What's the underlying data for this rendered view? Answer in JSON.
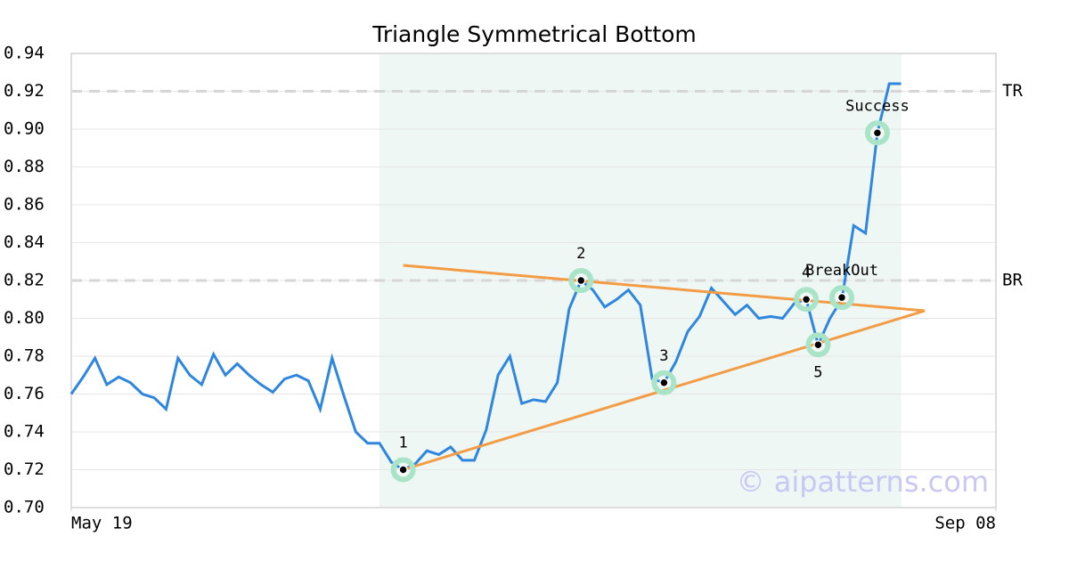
{
  "chart_data": {
    "type": "line",
    "title": "Triangle Symmetrical Bottom",
    "x": [
      0,
      1,
      2,
      3,
      4,
      5,
      6,
      7,
      8,
      9,
      10,
      11,
      12,
      13,
      14,
      15,
      16,
      17,
      18,
      19,
      20,
      21,
      22,
      23,
      24,
      25,
      26,
      27,
      28,
      29,
      30,
      31,
      32,
      33,
      34,
      35,
      36,
      37,
      38,
      39,
      40,
      41,
      42,
      43,
      44,
      45,
      46,
      47,
      48,
      49,
      50,
      51,
      52,
      53,
      54,
      55,
      56,
      57,
      58,
      59,
      60,
      61,
      62,
      63,
      64,
      65,
      66,
      67,
      68,
      69,
      70
    ],
    "series": [
      {
        "color": "#2e86de",
        "values": [
          0.76,
          0.769,
          0.779,
          0.765,
          0.769,
          0.766,
          0.76,
          0.758,
          0.752,
          0.779,
          0.77,
          0.765,
          0.781,
          0.77,
          0.776,
          0.77,
          0.765,
          0.761,
          0.768,
          0.77,
          0.767,
          0.752,
          0.779,
          0.759,
          0.74,
          0.734,
          0.734,
          0.724,
          0.72,
          0.723,
          0.73,
          0.728,
          0.732,
          0.725,
          0.725,
          0.741,
          0.77,
          0.78,
          0.755,
          0.757,
          0.756,
          0.766,
          0.805,
          0.82,
          0.815,
          0.806,
          0.81,
          0.815,
          0.807,
          0.768,
          0.766,
          0.777,
          0.793,
          0.801,
          0.816,
          0.809,
          0.802,
          0.807,
          0.8,
          0.801,
          0.8,
          0.808,
          0.81,
          0.786,
          0.8,
          0.81,
          0.849,
          0.845,
          0.898,
          0.924,
          0.924
        ]
      }
    ],
    "xlim": [
      0,
      78
    ],
    "xticks": [
      {
        "value": 0,
        "label": "May 19"
      },
      {
        "value": 78,
        "label": "Sep 08"
      }
    ],
    "ylim": [
      0.7,
      0.94
    ],
    "yticks": [
      {
        "value": 0.7,
        "label": "0.70"
      },
      0.72,
      0.74,
      0.76,
      0.78,
      {
        "value": 0.8,
        "label": "0.80"
      },
      0.82,
      0.84,
      0.86,
      0.88,
      {
        "value": 0.9,
        "label": "0.90"
      },
      0.92,
      0.94
    ],
    "grid": true,
    "highlight": {
      "x": [
        26,
        70
      ],
      "color": "#eef7f3"
    },
    "levels": [
      {
        "name": "TR",
        "value": 0.92
      },
      {
        "name": "BR",
        "value": 0.82
      }
    ],
    "trendlines": [
      {
        "color": "#f39c45",
        "x": [
          28,
          72
        ],
        "y": [
          0.828,
          0.804
        ]
      },
      {
        "color": "#f39c45",
        "x": [
          28,
          72
        ],
        "y": [
          0.72,
          0.804
        ]
      }
    ],
    "points": [
      {
        "label": "1",
        "x": 28,
        "y": 0.72
      },
      {
        "label": "2",
        "x": 43,
        "y": 0.82
      },
      {
        "label": "3",
        "x": 50,
        "y": 0.766
      },
      {
        "label": "4",
        "x": 62,
        "y": 0.81
      },
      {
        "label": "5",
        "x": 63,
        "y": 0.786,
        "label_position": "below"
      },
      {
        "label": "BreakOut",
        "x": 65,
        "y": 0.811
      },
      {
        "label": "Success",
        "x": 68,
        "y": 0.898
      }
    ],
    "watermark": "© aipatterns.com"
  }
}
